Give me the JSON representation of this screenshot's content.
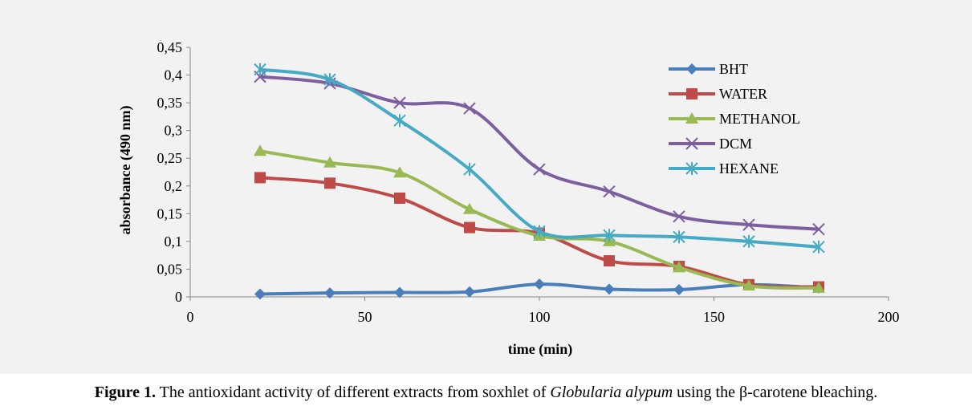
{
  "figure": {
    "caption_label": "Figure 1.",
    "caption_text_1": " The antioxidant activity of different extracts from soxhlet of ",
    "caption_species": "Globularia alypum",
    "caption_text_2": " using the β-carotene bleaching."
  },
  "chart_data": {
    "type": "line",
    "xlabel": "time (min)",
    "ylabel": "absorbance (490 nm)",
    "xlim": [
      0,
      200
    ],
    "ylim": [
      0,
      0.45
    ],
    "xticks": [
      0,
      50,
      100,
      150,
      200
    ],
    "xtick_labels": [
      "0",
      "50",
      "100",
      "150",
      "200"
    ],
    "yticks": [
      0,
      0.05,
      0.1,
      0.15,
      0.2,
      0.25,
      0.3,
      0.35,
      0.4,
      0.45
    ],
    "ytick_labels": [
      "0",
      "0,05",
      "0,1",
      "0,15",
      "0,2",
      "0,25",
      "0,3",
      "0,35",
      "0,4",
      "0,45"
    ],
    "grid": false,
    "smooth": true,
    "legend_position": "top-right",
    "x": [
      20,
      40,
      60,
      80,
      100,
      120,
      140,
      160,
      180
    ],
    "series": [
      {
        "name": "BHT",
        "color": "#4a7ebb",
        "marker": "diamond",
        "values": [
          0.005,
          0.007,
          0.008,
          0.009,
          0.023,
          0.014,
          0.013,
          0.022,
          0.016
        ]
      },
      {
        "name": "WATER",
        "color": "#be4b48",
        "marker": "square",
        "values": [
          0.215,
          0.205,
          0.178,
          0.125,
          0.115,
          0.065,
          0.055,
          0.022,
          0.018
        ]
      },
      {
        "name": "METHANOL",
        "color": "#98b954",
        "marker": "triangle",
        "values": [
          0.263,
          0.242,
          0.224,
          0.158,
          0.11,
          0.1,
          0.053,
          0.02,
          0.016
        ]
      },
      {
        "name": "DCM",
        "color": "#7d5fa0",
        "marker": "x",
        "values": [
          0.397,
          0.385,
          0.35,
          0.34,
          0.23,
          0.19,
          0.145,
          0.13,
          0.122
        ]
      },
      {
        "name": "HEXANE",
        "color": "#46aac5",
        "marker": "star",
        "values": [
          0.41,
          0.392,
          0.318,
          0.23,
          0.118,
          0.111,
          0.108,
          0.1,
          0.09
        ]
      }
    ]
  }
}
